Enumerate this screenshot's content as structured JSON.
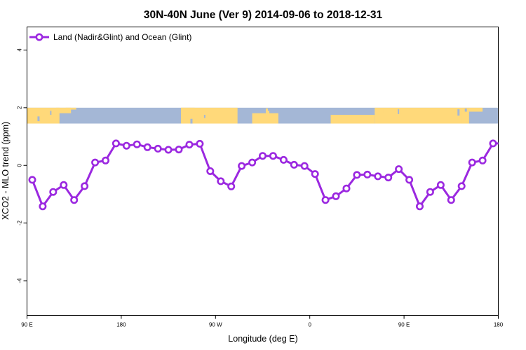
{
  "chart_data": {
    "type": "line",
    "title": "30N-40N June (Ver 9)   2014-09-06 to 2018-12-31",
    "xlabel": "Longitude (deg E)",
    "ylabel": "XCO2 - MLO trend (ppm)",
    "x_ticks": [
      {
        "value": 90,
        "label": "90 E"
      },
      {
        "value": 180,
        "label": "180"
      },
      {
        "value": 270,
        "label": "90 W"
      },
      {
        "value": 360,
        "label": "0"
      },
      {
        "value": 450,
        "label": "90 E"
      },
      {
        "value": 540,
        "label": "180"
      }
    ],
    "y_ticks": [
      {
        "value": -4,
        "label": "-4"
      },
      {
        "value": -2,
        "label": "-2"
      },
      {
        "value": 0,
        "label": "0"
      },
      {
        "value": 2,
        "label": "2"
      },
      {
        "value": 4,
        "label": "4"
      }
    ],
    "xlim": [
      90,
      540
    ],
    "ylim": [
      -5.2,
      4.8
    ],
    "grid": false,
    "legend_position": "top-left",
    "land_mask_band": {
      "y_range": [
        1.45,
        2.0
      ],
      "ocean_color": "#A4B7D6",
      "land_color": "#FFD97A"
    },
    "series": [
      {
        "name": "Land (Nadir&Glint) and Ocean (Glint)",
        "color": "#9B28E0",
        "x": [
          95,
          105,
          115,
          125,
          135,
          145,
          155,
          165,
          175,
          185,
          195,
          205,
          215,
          225,
          235,
          245,
          255,
          265,
          275,
          285,
          295,
          305,
          315,
          325,
          335,
          345,
          355,
          365,
          375,
          385,
          395,
          405,
          415,
          425,
          435,
          445,
          455,
          465,
          475,
          485,
          495,
          505,
          515,
          525,
          535,
          540
        ],
        "y": [
          -0.5,
          -1.42,
          -0.92,
          -0.68,
          -1.2,
          -0.72,
          0.1,
          0.17,
          0.76,
          0.68,
          0.73,
          0.63,
          0.58,
          0.54,
          0.55,
          0.72,
          0.75,
          -0.2,
          -0.55,
          -0.73,
          -0.02,
          0.1,
          0.33,
          0.33,
          0.19,
          0.02,
          -0.02,
          -0.3,
          -1.2,
          -1.07,
          -0.8,
          -0.33,
          -0.32,
          -0.38,
          -0.42,
          -0.13,
          -0.5,
          -1.42,
          -0.92,
          -0.68,
          -1.2,
          -0.72,
          0.1,
          0.17,
          0.76,
          0.76
        ]
      }
    ]
  }
}
